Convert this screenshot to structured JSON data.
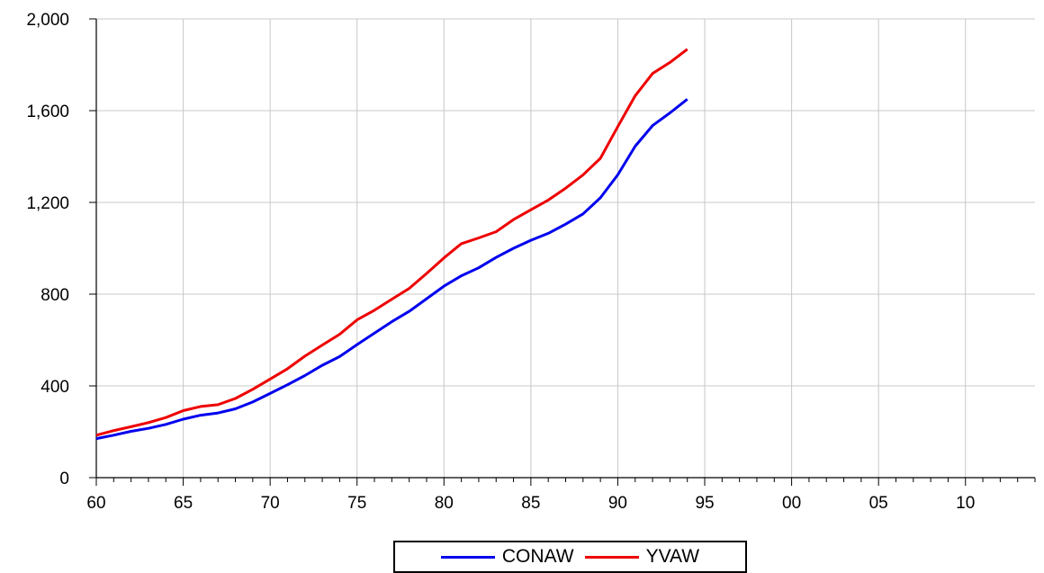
{
  "chart_data": {
    "type": "line",
    "title": "",
    "xlabel": "",
    "ylabel": "",
    "x": [
      1960,
      1961,
      1962,
      1963,
      1964,
      1965,
      1966,
      1967,
      1968,
      1969,
      1970,
      1971,
      1972,
      1973,
      1974,
      1975,
      1976,
      1977,
      1978,
      1979,
      1980,
      1981,
      1982,
      1983,
      1984,
      1985,
      1986,
      1987,
      1988,
      1989,
      1990,
      1991,
      1992,
      1993,
      1994
    ],
    "xlim": [
      1960,
      2014
    ],
    "ylim": [
      0,
      2000
    ],
    "x_ticks": [
      1960,
      1965,
      1970,
      1975,
      1980,
      1985,
      1990,
      1995,
      2000,
      2005,
      2010
    ],
    "x_tick_labels": [
      "60",
      "65",
      "70",
      "75",
      "80",
      "85",
      "90",
      "95",
      "00",
      "05",
      "10"
    ],
    "y_ticks": [
      0,
      400,
      800,
      1200,
      1600,
      2000
    ],
    "y_tick_labels": [
      "0",
      "400",
      "800",
      "1,200",
      "1,600",
      "2,000"
    ],
    "grid": true,
    "legend_position": "bottom-center",
    "series": [
      {
        "name": "CONAW",
        "color": "#0000ee",
        "values": [
          170,
          185,
          202,
          215,
          232,
          255,
          272,
          282,
          300,
          330,
          367,
          405,
          445,
          490,
          528,
          580,
          630,
          680,
          725,
          780,
          835,
          880,
          915,
          960,
          1000,
          1035,
          1065,
          1105,
          1150,
          1220,
          1320,
          1445,
          1535,
          1590,
          1650
        ]
      },
      {
        "name": "YVAW",
        "color": "#ee0000",
        "values": [
          185,
          205,
          222,
          240,
          262,
          292,
          310,
          318,
          345,
          385,
          430,
          475,
          530,
          578,
          625,
          688,
          730,
          778,
          825,
          890,
          958,
          1020,
          1045,
          1072,
          1125,
          1168,
          1210,
          1262,
          1320,
          1392,
          1530,
          1665,
          1762,
          1810,
          1868
        ]
      }
    ]
  }
}
